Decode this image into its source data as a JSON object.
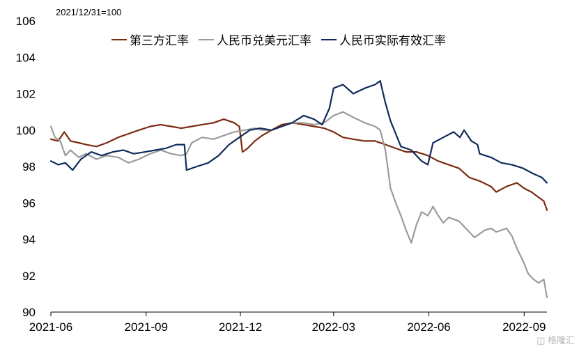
{
  "chart_data": {
    "type": "line",
    "note": "2021/12/31=100",
    "ylim": [
      90,
      106
    ],
    "yticks": [
      "90",
      "92",
      "94",
      "96",
      "98",
      "100",
      "102",
      "104",
      "106"
    ],
    "x_start": "2021-06-01",
    "x_end": "2022-09-23",
    "xticks": [
      "2021-06",
      "2021-09",
      "2021-12",
      "2022-03",
      "2022-06",
      "2022-09"
    ],
    "legend_position": "top",
    "grid": false,
    "series": [
      {
        "name": "第三方汇率",
        "color": "#7b2a10",
        "points": [
          [
            "2021-06-01",
            99.5
          ],
          [
            "2021-06-08",
            99.4
          ],
          [
            "2021-06-14",
            99.9
          ],
          [
            "2021-06-20",
            99.4
          ],
          [
            "2021-06-28",
            99.3
          ],
          [
            "2021-07-05",
            99.2
          ],
          [
            "2021-07-15",
            99.1
          ],
          [
            "2021-07-25",
            99.3
          ],
          [
            "2021-08-05",
            99.6
          ],
          [
            "2021-08-15",
            99.8
          ],
          [
            "2021-08-25",
            100.0
          ],
          [
            "2021-09-05",
            100.2
          ],
          [
            "2021-09-15",
            100.3
          ],
          [
            "2021-09-25",
            100.2
          ],
          [
            "2021-10-05",
            100.1
          ],
          [
            "2021-10-15",
            100.2
          ],
          [
            "2021-10-25",
            100.3
          ],
          [
            "2021-11-05",
            100.4
          ],
          [
            "2021-11-15",
            100.6
          ],
          [
            "2021-11-25",
            100.4
          ],
          [
            "2021-11-30",
            100.2
          ],
          [
            "2021-12-03",
            98.8
          ],
          [
            "2021-12-08",
            99.0
          ],
          [
            "2021-12-15",
            99.4
          ],
          [
            "2021-12-22",
            99.7
          ],
          [
            "2021-12-31",
            100.0
          ],
          [
            "2022-01-10",
            100.3
          ],
          [
            "2022-01-20",
            100.4
          ],
          [
            "2022-01-31",
            100.3
          ],
          [
            "2022-02-10",
            100.2
          ],
          [
            "2022-02-20",
            100.1
          ],
          [
            "2022-03-01",
            99.9
          ],
          [
            "2022-03-10",
            99.6
          ],
          [
            "2022-03-20",
            99.5
          ],
          [
            "2022-03-31",
            99.4
          ],
          [
            "2022-04-10",
            99.4
          ],
          [
            "2022-04-20",
            99.2
          ],
          [
            "2022-04-30",
            99.0
          ],
          [
            "2022-05-10",
            98.8
          ],
          [
            "2022-05-20",
            98.8
          ],
          [
            "2022-05-31",
            98.6
          ],
          [
            "2022-06-10",
            98.3
          ],
          [
            "2022-06-20",
            98.1
          ],
          [
            "2022-06-30",
            97.9
          ],
          [
            "2022-07-10",
            97.4
          ],
          [
            "2022-07-20",
            97.2
          ],
          [
            "2022-07-31",
            96.9
          ],
          [
            "2022-08-05",
            96.6
          ],
          [
            "2022-08-15",
            96.9
          ],
          [
            "2022-08-25",
            97.1
          ],
          [
            "2022-09-01",
            96.8
          ],
          [
            "2022-09-08",
            96.6
          ],
          [
            "2022-09-15",
            96.3
          ],
          [
            "2022-09-20",
            96.1
          ],
          [
            "2022-09-23",
            95.6
          ]
        ]
      },
      {
        "name": "人民币兑美元汇率",
        "color": "#9b9b9b",
        "points": [
          [
            "2021-06-01",
            100.2
          ],
          [
            "2021-06-05",
            99.6
          ],
          [
            "2021-06-10",
            99.4
          ],
          [
            "2021-06-15",
            98.6
          ],
          [
            "2021-06-20",
            98.9
          ],
          [
            "2021-06-28",
            98.5
          ],
          [
            "2021-07-05",
            98.7
          ],
          [
            "2021-07-15",
            98.4
          ],
          [
            "2021-07-25",
            98.6
          ],
          [
            "2021-08-05",
            98.5
          ],
          [
            "2021-08-15",
            98.2
          ],
          [
            "2021-08-25",
            98.4
          ],
          [
            "2021-09-05",
            98.7
          ],
          [
            "2021-09-15",
            98.9
          ],
          [
            "2021-09-25",
            98.7
          ],
          [
            "2021-10-05",
            98.6
          ],
          [
            "2021-10-10",
            98.7
          ],
          [
            "2021-10-15",
            99.3
          ],
          [
            "2021-10-25",
            99.6
          ],
          [
            "2021-11-05",
            99.5
          ],
          [
            "2021-11-15",
            99.7
          ],
          [
            "2021-11-25",
            99.9
          ],
          [
            "2021-12-05",
            100.0
          ],
          [
            "2021-12-15",
            100.1
          ],
          [
            "2021-12-22",
            100.0
          ],
          [
            "2021-12-31",
            100.0
          ],
          [
            "2022-01-10",
            100.2
          ],
          [
            "2022-01-20",
            100.4
          ],
          [
            "2022-01-31",
            100.4
          ],
          [
            "2022-02-10",
            100.3
          ],
          [
            "2022-02-20",
            100.4
          ],
          [
            "2022-03-01",
            100.8
          ],
          [
            "2022-03-10",
            101.0
          ],
          [
            "2022-03-20",
            100.7
          ],
          [
            "2022-03-31",
            100.4
          ],
          [
            "2022-04-10",
            100.2
          ],
          [
            "2022-04-15",
            100.0
          ],
          [
            "2022-04-20",
            98.9
          ],
          [
            "2022-04-25",
            96.8
          ],
          [
            "2022-04-30",
            96.0
          ],
          [
            "2022-05-05",
            95.3
          ],
          [
            "2022-05-10",
            94.5
          ],
          [
            "2022-05-15",
            93.8
          ],
          [
            "2022-05-20",
            94.8
          ],
          [
            "2022-05-25",
            95.5
          ],
          [
            "2022-05-31",
            95.3
          ],
          [
            "2022-06-05",
            95.8
          ],
          [
            "2022-06-10",
            95.3
          ],
          [
            "2022-06-15",
            94.9
          ],
          [
            "2022-06-20",
            95.2
          ],
          [
            "2022-06-25",
            95.1
          ],
          [
            "2022-06-30",
            95.0
          ],
          [
            "2022-07-05",
            94.7
          ],
          [
            "2022-07-10",
            94.4
          ],
          [
            "2022-07-15",
            94.1
          ],
          [
            "2022-07-20",
            94.3
          ],
          [
            "2022-07-25",
            94.5
          ],
          [
            "2022-07-31",
            94.6
          ],
          [
            "2022-08-05",
            94.4
          ],
          [
            "2022-08-10",
            94.5
          ],
          [
            "2022-08-15",
            94.6
          ],
          [
            "2022-08-20",
            94.2
          ],
          [
            "2022-08-25",
            93.5
          ],
          [
            "2022-08-31",
            92.8
          ],
          [
            "2022-09-05",
            92.1
          ],
          [
            "2022-09-10",
            91.8
          ],
          [
            "2022-09-15",
            91.6
          ],
          [
            "2022-09-20",
            91.8
          ],
          [
            "2022-09-23",
            90.8
          ]
        ]
      },
      {
        "name": "人民币实际有效汇率",
        "color": "#0f2a5c",
        "points": [
          [
            "2021-06-01",
            98.3
          ],
          [
            "2021-06-08",
            98.1
          ],
          [
            "2021-06-15",
            98.2
          ],
          [
            "2021-06-22",
            97.8
          ],
          [
            "2021-06-30",
            98.4
          ],
          [
            "2021-07-10",
            98.8
          ],
          [
            "2021-07-20",
            98.6
          ],
          [
            "2021-07-31",
            98.8
          ],
          [
            "2021-08-10",
            98.9
          ],
          [
            "2021-08-20",
            98.7
          ],
          [
            "2021-08-31",
            98.8
          ],
          [
            "2021-09-10",
            98.9
          ],
          [
            "2021-09-20",
            99.0
          ],
          [
            "2021-09-30",
            99.2
          ],
          [
            "2021-10-08",
            99.2
          ],
          [
            "2021-10-10",
            97.8
          ],
          [
            "2021-10-20",
            98.0
          ],
          [
            "2021-10-31",
            98.2
          ],
          [
            "2021-11-10",
            98.6
          ],
          [
            "2021-11-20",
            99.2
          ],
          [
            "2021-11-30",
            99.6
          ],
          [
            "2021-12-10",
            100.0
          ],
          [
            "2021-12-20",
            100.1
          ],
          [
            "2021-12-31",
            100.0
          ],
          [
            "2022-01-10",
            100.2
          ],
          [
            "2022-01-20",
            100.4
          ],
          [
            "2022-01-31",
            100.8
          ],
          [
            "2022-02-10",
            100.6
          ],
          [
            "2022-02-18",
            100.3
          ],
          [
            "2022-02-25",
            101.2
          ],
          [
            "2022-03-01",
            102.3
          ],
          [
            "2022-03-10",
            102.5
          ],
          [
            "2022-03-20",
            102.0
          ],
          [
            "2022-03-31",
            102.3
          ],
          [
            "2022-04-10",
            102.5
          ],
          [
            "2022-04-15",
            102.7
          ],
          [
            "2022-04-20",
            101.5
          ],
          [
            "2022-04-25",
            100.5
          ],
          [
            "2022-04-30",
            99.8
          ],
          [
            "2022-05-05",
            99.1
          ],
          [
            "2022-05-15",
            98.9
          ],
          [
            "2022-05-25",
            98.3
          ],
          [
            "2022-05-31",
            98.1
          ],
          [
            "2022-06-05",
            99.3
          ],
          [
            "2022-06-15",
            99.6
          ],
          [
            "2022-06-25",
            99.9
          ],
          [
            "2022-07-01",
            99.6
          ],
          [
            "2022-07-05",
            100.0
          ],
          [
            "2022-07-12",
            99.4
          ],
          [
            "2022-07-18",
            99.2
          ],
          [
            "2022-07-20",
            98.7
          ],
          [
            "2022-07-31",
            98.5
          ],
          [
            "2022-08-10",
            98.2
          ],
          [
            "2022-08-20",
            98.1
          ],
          [
            "2022-08-31",
            97.9
          ],
          [
            "2022-09-10",
            97.6
          ],
          [
            "2022-09-18",
            97.4
          ],
          [
            "2022-09-23",
            97.1
          ]
        ]
      }
    ]
  },
  "watermark": "格隆汇",
  "watermark_icon": "watermark-logo-icon"
}
